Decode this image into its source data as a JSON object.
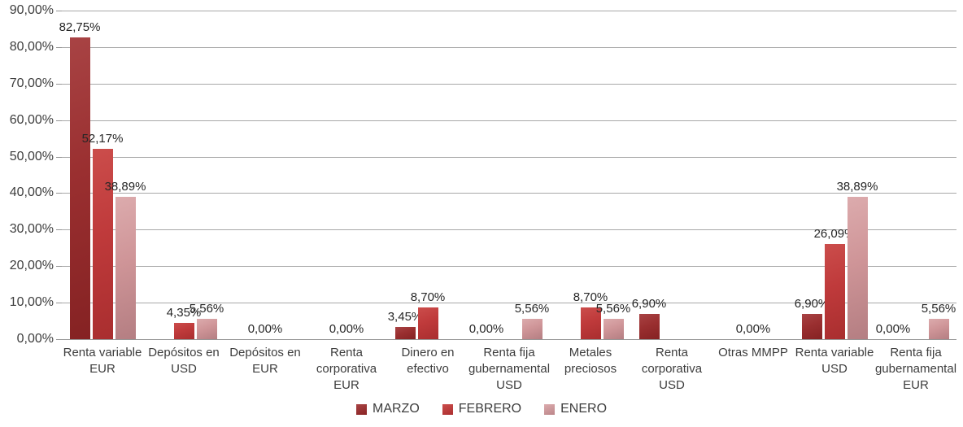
{
  "chart_data": {
    "type": "bar",
    "title": "",
    "xlabel": "",
    "ylabel": "",
    "grid": true,
    "value_format": "percent_comma_decimal",
    "categories": [
      "Renta variable EUR",
      "Depósitos en USD",
      "Depósitos en EUR",
      "Renta corporativa EUR",
      "Dinero en efectivo",
      "Renta fija gubernamental USD",
      "Metales preciosos",
      "Renta corporativa USD",
      "Otras MMPP",
      "Renta variable USD",
      "Renta fija gubernamental EUR"
    ],
    "category_label_lines": [
      [
        "Renta variable",
        "EUR"
      ],
      [
        "Depósitos en",
        "USD"
      ],
      [
        "Depósitos en",
        "EUR"
      ],
      [
        "Renta",
        "corporativa",
        "EUR"
      ],
      [
        "Dinero en",
        "efectivo"
      ],
      [
        "Renta fija",
        "gubernamental",
        "USD"
      ],
      [
        "Metales",
        "preciosos"
      ],
      [
        "Renta",
        "corporativa",
        "USD"
      ],
      [
        "Otras MMPP"
      ],
      [
        "Renta variable",
        "USD"
      ],
      [
        "Renta fija",
        "gubernamental",
        "EUR"
      ]
    ],
    "series": [
      {
        "name": "MARZO",
        "color": "#9a2f30",
        "values": [
          82.75,
          null,
          null,
          null,
          3.45,
          0,
          null,
          6.9,
          null,
          6.9,
          0
        ],
        "labels": [
          "82,75%",
          null,
          null,
          null,
          "3,45%",
          "0,00%",
          null,
          "6,90%",
          null,
          "6,90%",
          "0,00%"
        ]
      },
      {
        "name": "FEBRERO",
        "color": "#bf3a3b",
        "values": [
          52.17,
          4.35,
          0,
          0,
          8.7,
          null,
          8.7,
          null,
          0,
          26.09,
          null
        ],
        "labels": [
          "52,17%",
          "4,35%",
          "0,00%",
          "0,00%",
          "8,70%",
          null,
          "8,70%",
          null,
          "0,00%",
          "26,09%",
          null
        ]
      },
      {
        "name": "ENERO",
        "color": "#cf9598",
        "values": [
          38.89,
          5.56,
          null,
          null,
          null,
          5.56,
          5.56,
          null,
          null,
          38.89,
          5.56
        ],
        "labels": [
          "38,89%",
          "5,56%",
          null,
          null,
          null,
          "5,56%",
          "5,56%",
          null,
          null,
          "38,89%",
          "5,56%"
        ]
      }
    ],
    "y_axis": {
      "min": 0,
      "max": 90,
      "step": 10,
      "tick_labels": [
        "0,00%",
        "10,00%",
        "20,00%",
        "30,00%",
        "40,00%",
        "50,00%",
        "60,00%",
        "70,00%",
        "80,00%",
        "90,00%"
      ]
    },
    "legend": {
      "position": "bottom",
      "entries": [
        "MARZO",
        "FEBRERO",
        "ENERO"
      ]
    }
  }
}
